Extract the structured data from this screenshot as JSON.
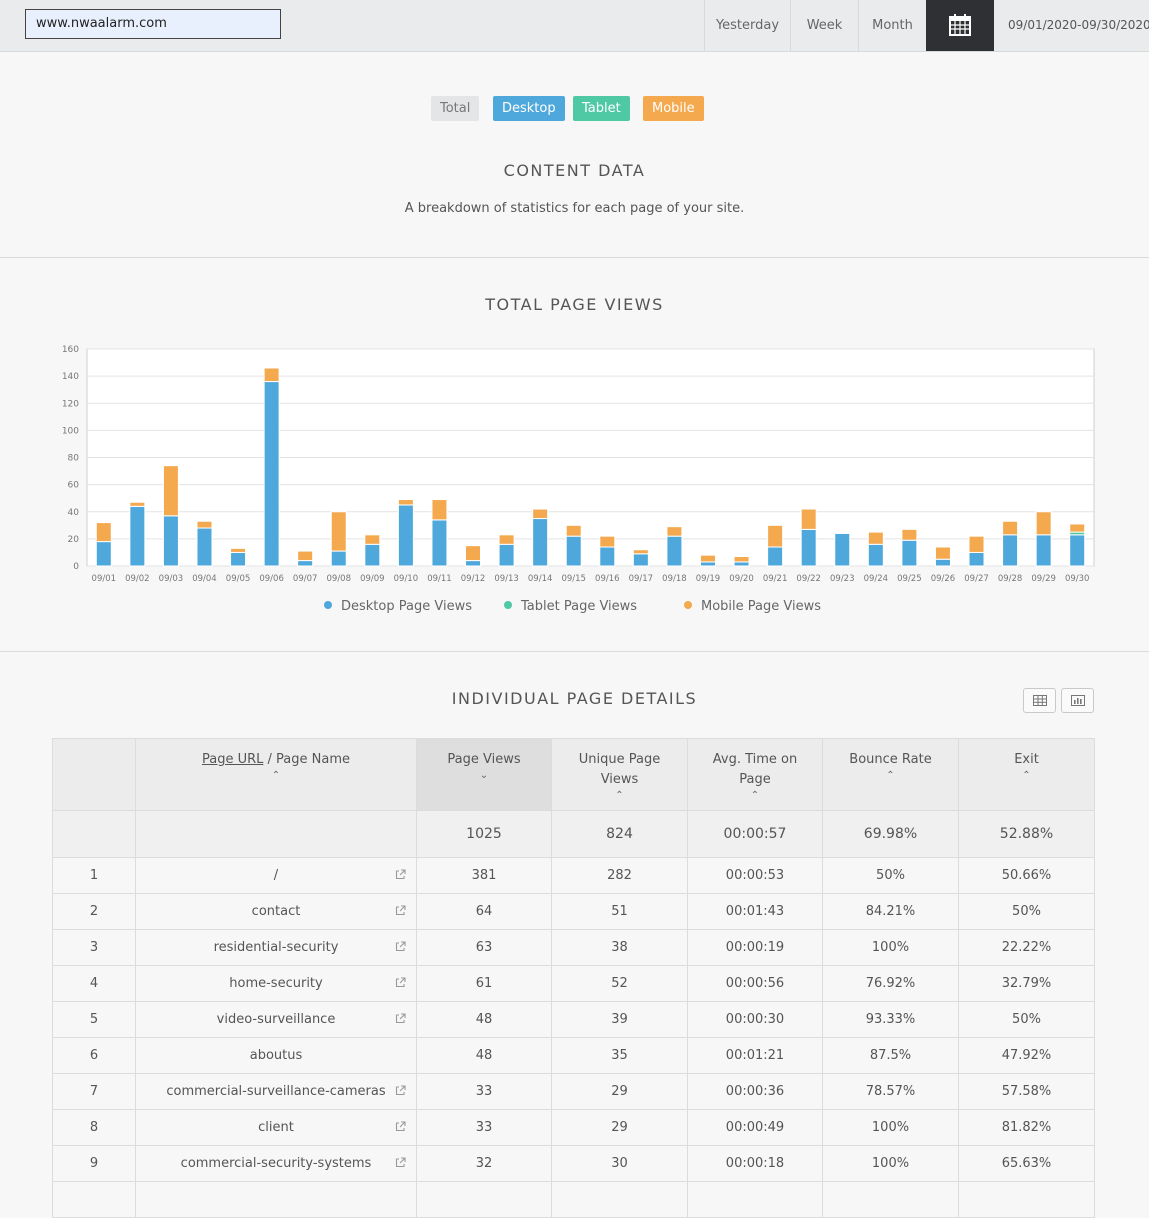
{
  "header": {
    "site_value": "www.nwaalarm.com",
    "ranges": [
      "Yesterday",
      "Week",
      "Month"
    ],
    "calendar_icon": "calendar-icon",
    "date_range": "09/01/2020-09/30/2020"
  },
  "filters": [
    {
      "label": "Total",
      "color": "#e4e5e7"
    },
    {
      "label": "Desktop",
      "color": "#4fa8dc"
    },
    {
      "label": "Tablet",
      "color": "#4ec9a3"
    },
    {
      "label": "Mobile",
      "color": "#f5a94f"
    }
  ],
  "content": {
    "title": "CONTENT  DATA",
    "subtitle": "A breakdown of statistics for each page of your site."
  },
  "chart_title": "TOTAL  PAGE  VIEWS",
  "chart_data": {
    "type": "bar",
    "stacked": true,
    "title": "TOTAL  PAGE  VIEWS",
    "categories": [
      "09/01",
      "09/02",
      "09/03",
      "09/04",
      "09/05",
      "09/06",
      "09/07",
      "09/08",
      "09/09",
      "09/10",
      "09/11",
      "09/12",
      "09/13",
      "09/14",
      "09/15",
      "09/16",
      "09/17",
      "09/18",
      "09/19",
      "09/20",
      "09/21",
      "09/22",
      "09/23",
      "09/24",
      "09/25",
      "09/26",
      "09/27",
      "09/28",
      "09/29",
      "09/30"
    ],
    "series": [
      {
        "name": "Desktop Page Views",
        "color": "#4fa8dc",
        "values": [
          18,
          44,
          37,
          28,
          10,
          136,
          4,
          11,
          16,
          45,
          34,
          4,
          16,
          35,
          22,
          14,
          9,
          22,
          3,
          3,
          14,
          27,
          24,
          16,
          19,
          5,
          10,
          23,
          23,
          23
        ]
      },
      {
        "name": "Tablet Page Views",
        "color": "#4ec9a3",
        "values": [
          0,
          0,
          0,
          0,
          0,
          0,
          0,
          0,
          0,
          0,
          0,
          0,
          0,
          0,
          0,
          0,
          0,
          0,
          0,
          0,
          0,
          0,
          0,
          0,
          0,
          0,
          0,
          0,
          0,
          2
        ]
      },
      {
        "name": "Mobile Page Views",
        "color": "#f5a94f",
        "values": [
          14,
          3,
          37,
          5,
          3,
          10,
          7,
          29,
          7,
          4,
          15,
          11,
          7,
          7,
          8,
          8,
          3,
          7,
          5,
          4,
          16,
          15,
          0,
          9,
          8,
          9,
          12,
          10,
          17,
          6
        ]
      }
    ],
    "ylim": [
      0,
      160
    ],
    "yticks": [
      0,
      20,
      40,
      60,
      80,
      100,
      120,
      140,
      160
    ],
    "grid": true,
    "legend": "bottom"
  },
  "page_details": {
    "title": "INDIVIDUAL  PAGE  DETAILS",
    "table_icon": "table-view-icon",
    "chart_icon": "chart-view-icon",
    "columns": {
      "url_link": "Page URL",
      "url_rest": " / Page Name",
      "views": "Page Views",
      "unique": "Unique Page Views",
      "avg_time": "Avg. Time on Page",
      "bounce": "Bounce Rate",
      "exit": "Exit"
    },
    "sort_up": "⌃",
    "sort_down": "⌄",
    "totals": {
      "views": "1025",
      "unique": "824",
      "avg_time": "00:00:57",
      "bounce": "69.98%",
      "exit": "52.88%"
    },
    "rows": [
      {
        "n": "1",
        "page": "/",
        "views": "381",
        "unique": "282",
        "time": "00:00:53",
        "bounce": "50%",
        "exit": "50.66%",
        "link": true
      },
      {
        "n": "2",
        "page": "contact",
        "views": "64",
        "unique": "51",
        "time": "00:01:43",
        "bounce": "84.21%",
        "exit": "50%",
        "link": true
      },
      {
        "n": "3",
        "page": "residential-security",
        "views": "63",
        "unique": "38",
        "time": "00:00:19",
        "bounce": "100%",
        "exit": "22.22%",
        "link": true
      },
      {
        "n": "4",
        "page": "home-security",
        "views": "61",
        "unique": "52",
        "time": "00:00:56",
        "bounce": "76.92%",
        "exit": "32.79%",
        "link": true
      },
      {
        "n": "5",
        "page": "video-surveillance",
        "views": "48",
        "unique": "39",
        "time": "00:00:30",
        "bounce": "93.33%",
        "exit": "50%",
        "link": true
      },
      {
        "n": "6",
        "page": "aboutus",
        "views": "48",
        "unique": "35",
        "time": "00:01:21",
        "bounce": "87.5%",
        "exit": "47.92%",
        "link": false
      },
      {
        "n": "7",
        "page": "commercial-surveillance-cameras",
        "views": "33",
        "unique": "29",
        "time": "00:00:36",
        "bounce": "78.57%",
        "exit": "57.58%",
        "link": true
      },
      {
        "n": "8",
        "page": "client",
        "views": "33",
        "unique": "29",
        "time": "00:00:49",
        "bounce": "100%",
        "exit": "81.82%",
        "link": true
      },
      {
        "n": "9",
        "page": "commercial-security-systems",
        "views": "32",
        "unique": "30",
        "time": "00:00:18",
        "bounce": "100%",
        "exit": "65.63%",
        "link": true
      },
      {
        "n": "",
        "page": "",
        "views": "",
        "unique": "",
        "time": "",
        "bounce": "",
        "exit": "",
        "link": false
      }
    ]
  }
}
